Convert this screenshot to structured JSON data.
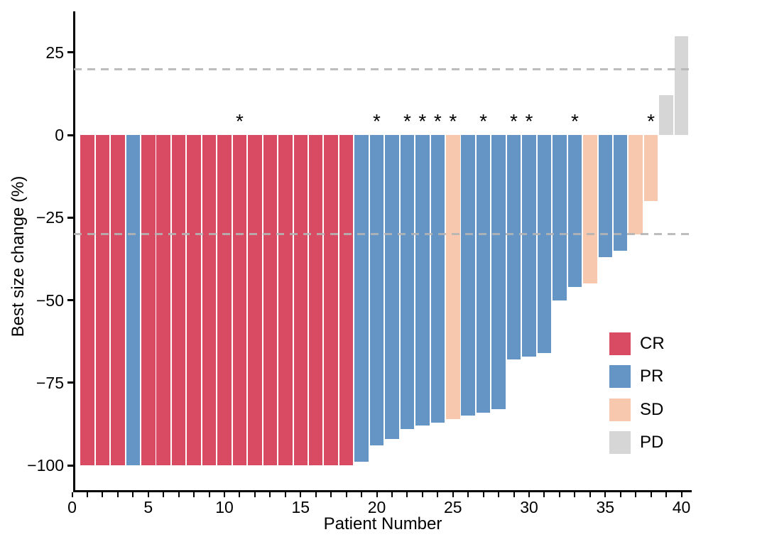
{
  "chart_data": {
    "type": "bar",
    "subtype": "waterfall",
    "title": "",
    "xlabel": "Patient Number",
    "ylabel": "Best size change (%)",
    "x_ticks": [
      0,
      5,
      10,
      15,
      20,
      25,
      30,
      35,
      40
    ],
    "x_minor_tick_step": 1,
    "y_ticks": [
      25,
      0,
      -25,
      -50,
      -75,
      -100
    ],
    "xlim": [
      0,
      40.7
    ],
    "ylim": [
      -107.5,
      37
    ],
    "grid": "off",
    "reference_lines": [
      {
        "name": "upper-threshold",
        "value": 20,
        "style": "dashed",
        "color": "#b4b4b4"
      },
      {
        "name": "lower-threshold",
        "value": -30,
        "style": "dashed",
        "color": "#b4b4b4"
      }
    ],
    "legend_position": "right-middle-lower",
    "legend": [
      {
        "label": "CR",
        "color": "#d84b63"
      },
      {
        "label": "PR",
        "color": "#6495c5"
      },
      {
        "label": "SD",
        "color": "#f8c8ae"
      },
      {
        "label": "PD",
        "color": "#d6d6d6"
      }
    ],
    "star_marker": "*",
    "starred_patients": [
      11,
      20,
      22,
      23,
      24,
      25,
      27,
      29,
      30,
      33,
      38
    ],
    "patients": [
      {
        "patient": 1,
        "value": -100,
        "response": "CR",
        "star": false
      },
      {
        "patient": 2,
        "value": -100,
        "response": "CR",
        "star": false
      },
      {
        "patient": 3,
        "value": -100,
        "response": "CR",
        "star": false
      },
      {
        "patient": 4,
        "value": -100,
        "response": "PR",
        "star": false
      },
      {
        "patient": 5,
        "value": -100,
        "response": "CR",
        "star": false
      },
      {
        "patient": 6,
        "value": -100,
        "response": "CR",
        "star": false
      },
      {
        "patient": 7,
        "value": -100,
        "response": "CR",
        "star": false
      },
      {
        "patient": 8,
        "value": -100,
        "response": "CR",
        "star": false
      },
      {
        "patient": 9,
        "value": -100,
        "response": "CR",
        "star": false
      },
      {
        "patient": 10,
        "value": -100,
        "response": "CR",
        "star": false
      },
      {
        "patient": 11,
        "value": -100,
        "response": "CR",
        "star": true
      },
      {
        "patient": 12,
        "value": -100,
        "response": "CR",
        "star": false
      },
      {
        "patient": 13,
        "value": -100,
        "response": "CR",
        "star": false
      },
      {
        "patient": 14,
        "value": -100,
        "response": "CR",
        "star": false
      },
      {
        "patient": 15,
        "value": -100,
        "response": "CR",
        "star": false
      },
      {
        "patient": 16,
        "value": -100,
        "response": "CR",
        "star": false
      },
      {
        "patient": 17,
        "value": -100,
        "response": "CR",
        "star": false
      },
      {
        "patient": 18,
        "value": -100,
        "response": "CR",
        "star": false
      },
      {
        "patient": 19,
        "value": -99,
        "response": "PR",
        "star": false
      },
      {
        "patient": 20,
        "value": -94,
        "response": "PR",
        "star": true
      },
      {
        "patient": 21,
        "value": -92,
        "response": "PR",
        "star": false
      },
      {
        "patient": 22,
        "value": -89,
        "response": "PR",
        "star": true
      },
      {
        "patient": 23,
        "value": -88,
        "response": "PR",
        "star": true
      },
      {
        "patient": 24,
        "value": -87,
        "response": "PR",
        "star": true
      },
      {
        "patient": 25,
        "value": -86,
        "response": "SD",
        "star": true
      },
      {
        "patient": 26,
        "value": -85,
        "response": "PR",
        "star": false
      },
      {
        "patient": 27,
        "value": -84,
        "response": "PR",
        "star": true
      },
      {
        "patient": 28,
        "value": -83,
        "response": "PR",
        "star": false
      },
      {
        "patient": 29,
        "value": -68,
        "response": "PR",
        "star": true
      },
      {
        "patient": 30,
        "value": -67,
        "response": "PR",
        "star": true
      },
      {
        "patient": 31,
        "value": -66,
        "response": "PR",
        "star": false
      },
      {
        "patient": 32,
        "value": -50,
        "response": "PR",
        "star": false
      },
      {
        "patient": 33,
        "value": -46,
        "response": "PR",
        "star": true
      },
      {
        "patient": 34,
        "value": -45,
        "response": "SD",
        "star": false
      },
      {
        "patient": 35,
        "value": -37,
        "response": "PR",
        "star": false
      },
      {
        "patient": 36,
        "value": -35,
        "response": "PR",
        "star": false
      },
      {
        "patient": 37,
        "value": -30,
        "response": "SD",
        "star": false
      },
      {
        "patient": 38,
        "value": -20,
        "response": "SD",
        "star": true
      },
      {
        "patient": 39,
        "value": 12,
        "response": "PD",
        "star": false
      },
      {
        "patient": 40,
        "value": 30,
        "response": "PD",
        "star": false
      }
    ]
  }
}
